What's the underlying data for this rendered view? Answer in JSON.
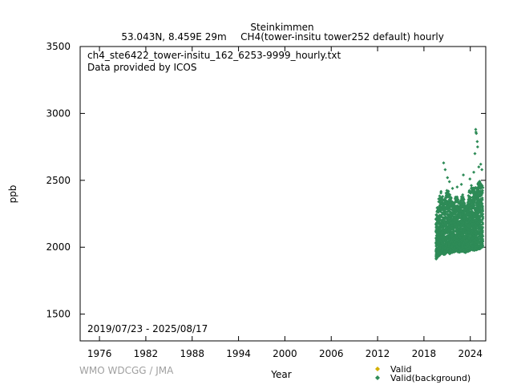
{
  "header": {
    "station": "Steinkimmen",
    "location": "53.043N, 8.459E 29m",
    "series_desc": "CH4(tower-insitu tower252 default) hourly"
  },
  "annotations": {
    "filename": "ch4_ste6422_tower-insitu_162_6253-9999_hourly.txt",
    "provider": "Data provided by ICOS",
    "date_range": "2019/07/23 - 2025/08/17"
  },
  "credit": "WMO WDCGG / JMA",
  "colors": {
    "valid": "#d4b000",
    "background": "#2e8b57"
  },
  "chart_data": {
    "type": "scatter",
    "xlabel": "Year",
    "ylabel": "ppb",
    "xlim": [
      1973.5,
      2026.0
    ],
    "ylim": [
      1300,
      3500
    ],
    "xticks": [
      "1976",
      "1982",
      "1988",
      "1994",
      "2000",
      "2006",
      "2012",
      "2018",
      "2024"
    ],
    "yticks": [
      "1500",
      "2000",
      "2500",
      "3000",
      "3500"
    ],
    "grid": false,
    "legend_position": "bottom-right",
    "series": [
      {
        "name": "Valid",
        "color": "#d4b000",
        "points": []
      },
      {
        "name": "Valid(background)",
        "color": "#2e8b57",
        "envelope": [
          [
            2019.56,
            1910,
            2250
          ],
          [
            2019.9,
            1930,
            2360
          ],
          [
            2020.2,
            1950,
            2420
          ],
          [
            2020.6,
            1940,
            2350
          ],
          [
            2021.0,
            1960,
            2440
          ],
          [
            2021.4,
            1950,
            2390
          ],
          [
            2021.8,
            1960,
            2330
          ],
          [
            2022.2,
            1970,
            2400
          ],
          [
            2022.6,
            1960,
            2320
          ],
          [
            2023.0,
            1970,
            2410
          ],
          [
            2023.4,
            1960,
            2300
          ],
          [
            2023.8,
            1970,
            2420
          ],
          [
            2024.2,
            1980,
            2470
          ],
          [
            2024.6,
            1975,
            2440
          ],
          [
            2025.0,
            1985,
            2480
          ],
          [
            2025.3,
            1990,
            2500
          ],
          [
            2025.63,
            1995,
            2450
          ]
        ],
        "outliers": [
          [
            2020.55,
            2630
          ],
          [
            2020.75,
            2580
          ],
          [
            2021.05,
            2520
          ],
          [
            2021.3,
            2490
          ],
          [
            2022.3,
            2450
          ],
          [
            2022.85,
            2470
          ],
          [
            2023.1,
            2540
          ],
          [
            2023.95,
            2510
          ],
          [
            2024.45,
            2560
          ],
          [
            2024.7,
            2880
          ],
          [
            2024.73,
            2860
          ],
          [
            2024.78,
            2850
          ],
          [
            2024.9,
            2790
          ],
          [
            2024.95,
            2750
          ],
          [
            2025.1,
            2600
          ],
          [
            2025.35,
            2620
          ],
          [
            2025.5,
            2580
          ],
          [
            2024.6,
            2700
          ],
          [
            2021.7,
            2440
          ]
        ]
      }
    ]
  }
}
